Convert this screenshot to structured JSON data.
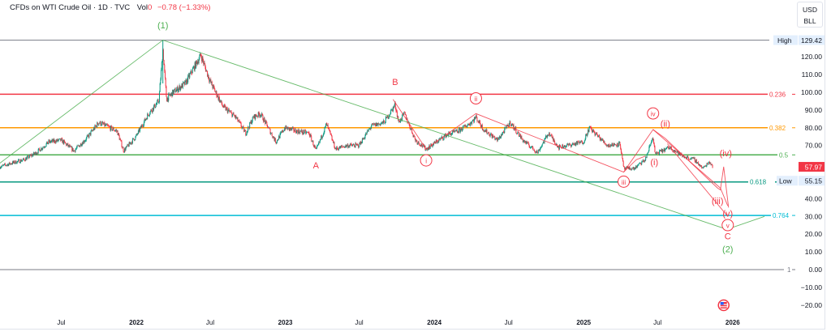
{
  "header": {
    "symbol_title": "CFDs on WTI Crude Oil · 1D · TVC",
    "volume_label": "Vol",
    "volume_value": "0",
    "change": "−0.78 (−1.33%)"
  },
  "currency": {
    "line1": "USD",
    "line2": "BLL"
  },
  "colors": {
    "up": "#089981",
    "down": "#f23645",
    "fib_high": "#787b86",
    "fib_0236": "#f23645",
    "fib_0382": "#ff9800",
    "fib_05": "#4caf50",
    "fib_0618": "#089981",
    "fib_0764": "#00bcd4",
    "fib_1": "#787b86",
    "wave_green": "#4caf50",
    "wave_red": "#f23645"
  },
  "chart_data": {
    "type": "candlestick",
    "title": "CFDs on WTI Crude Oil · 1D · TVC",
    "ylim": [
      -25,
      135
    ],
    "y_ticks": [
      "120.00",
      "110.00",
      "100.00",
      "90.00",
      "80.00",
      "70.00",
      "40.00",
      "30.00",
      "20.00",
      "10.00",
      "0.00",
      "−10.00",
      "−20.00"
    ],
    "y_tick_values": [
      120,
      110,
      100,
      90,
      80,
      70,
      40,
      30,
      20,
      10,
      0,
      -10,
      -20
    ],
    "x_ticks": [
      {
        "label": "Jul",
        "date": "2021-07-01",
        "bold": false
      },
      {
        "label": "2022",
        "date": "2022-01-01",
        "bold": true
      },
      {
        "label": "Jul",
        "date": "2022-07-01",
        "bold": false
      },
      {
        "label": "2023",
        "date": "2023-01-01",
        "bold": true
      },
      {
        "label": "Jul",
        "date": "2023-07-01",
        "bold": false
      },
      {
        "label": "2024",
        "date": "2024-01-01",
        "bold": true
      },
      {
        "label": "Jul",
        "date": "2024-07-01",
        "bold": false
      },
      {
        "label": "2025",
        "date": "2025-01-01",
        "bold": true
      },
      {
        "label": "Jul",
        "date": "2025-07-01",
        "bold": false
      },
      {
        "label": "2026",
        "date": "2026-01-01",
        "bold": true
      }
    ],
    "price_path": [
      [
        "2021-02-01",
        58
      ],
      [
        "2021-03-01",
        60
      ],
      [
        "2021-04-01",
        62
      ],
      [
        "2021-05-01",
        66
      ],
      [
        "2021-06-01",
        72
      ],
      [
        "2021-07-01",
        73
      ],
      [
        "2021-08-01",
        67
      ],
      [
        "2021-09-01",
        74
      ],
      [
        "2021-10-01",
        83
      ],
      [
        "2021-11-15",
        78
      ],
      [
        "2021-12-01",
        67
      ],
      [
        "2021-12-31",
        75
      ],
      [
        "2022-01-31",
        88
      ],
      [
        "2022-02-25",
        95
      ],
      [
        "2022-03-07",
        124
      ],
      [
        "2022-03-16",
        96
      ],
      [
        "2022-04-01",
        100
      ],
      [
        "2022-05-01",
        105
      ],
      [
        "2022-06-08",
        121
      ],
      [
        "2022-07-01",
        106
      ],
      [
        "2022-08-01",
        92
      ],
      [
        "2022-09-01",
        86
      ],
      [
        "2022-09-26",
        77
      ],
      [
        "2022-10-15",
        86
      ],
      [
        "2022-11-01",
        88
      ],
      [
        "2022-12-09",
        72
      ],
      [
        "2022-12-31",
        80
      ],
      [
        "2023-01-31",
        78
      ],
      [
        "2023-02-28",
        77
      ],
      [
        "2023-03-17",
        67
      ],
      [
        "2023-04-12",
        82
      ],
      [
        "2023-05-04",
        68
      ],
      [
        "2023-06-01",
        70
      ],
      [
        "2023-06-30",
        70
      ],
      [
        "2023-07-31",
        81
      ],
      [
        "2023-08-31",
        83
      ],
      [
        "2023-09-27",
        93
      ],
      [
        "2023-10-06",
        83
      ],
      [
        "2023-10-20",
        88
      ],
      [
        "2023-11-16",
        73
      ],
      [
        "2023-12-12",
        68
      ],
      [
        "2024-01-31",
        76
      ],
      [
        "2024-02-28",
        78
      ],
      [
        "2024-03-31",
        83
      ],
      [
        "2024-04-12",
        86
      ],
      [
        "2024-05-01",
        79
      ],
      [
        "2024-06-04",
        73
      ],
      [
        "2024-07-05",
        83
      ],
      [
        "2024-08-05",
        73
      ],
      [
        "2024-09-10",
        66
      ],
      [
        "2024-10-07",
        77
      ],
      [
        "2024-11-01",
        69
      ],
      [
        "2024-12-31",
        72
      ],
      [
        "2025-01-15",
        80
      ],
      [
        "2025-02-28",
        70
      ],
      [
        "2025-03-31",
        71
      ],
      [
        "2025-04-09",
        57
      ],
      [
        "2025-05-05",
        57
      ],
      [
        "2025-06-01",
        62
      ],
      [
        "2025-06-20",
        75
      ],
      [
        "2025-06-25",
        65
      ],
      [
        "2025-07-31",
        69
      ],
      [
        "2025-08-31",
        64
      ],
      [
        "2025-09-30",
        62
      ],
      [
        "2025-10-20",
        57
      ],
      [
        "2025-11-05",
        61
      ],
      [
        "2025-11-14",
        57.97
      ]
    ],
    "fib_levels": [
      {
        "ratio": "High",
        "price": 129.42,
        "label": "High",
        "value_label": "129.42",
        "color_key": "fib_high"
      },
      {
        "ratio": "0.236",
        "price": 98.9,
        "label": "0.236",
        "color_key": "fib_0236"
      },
      {
        "ratio": "0.382",
        "price": 80.0,
        "label": "0.382",
        "color_key": "fib_0382"
      },
      {
        "ratio": "0.5",
        "price": 64.71,
        "label": "0.5",
        "color_key": "fib_05"
      },
      {
        "ratio": "0.618",
        "price": 49.44,
        "label": "0.618",
        "color_key": "fib_0618"
      },
      {
        "ratio": "0.764",
        "price": 30.55,
        "label": "0.764",
        "color_key": "fib_0764"
      },
      {
        "ratio": "1",
        "price": 0,
        "label": "1",
        "color_key": "fib_1"
      }
    ],
    "last_price": {
      "value": 57.97,
      "label": "57.97"
    },
    "low_marker": {
      "label": "Low",
      "value": 55.15,
      "value_label": "55.15"
    },
    "wave_labels": [
      {
        "text": "(1)",
        "date": "2022-03-07",
        "price": 136,
        "color_key": "wave_green",
        "circle": false
      },
      {
        "text": "(2)",
        "date": "2025-12-20",
        "price": 14,
        "color_key": "wave_green",
        "circle": false
      },
      {
        "text": "A",
        "date": "2023-03-17",
        "price": 57,
        "color_key": "wave_red",
        "circle": false
      },
      {
        "text": "B",
        "date": "2023-09-27",
        "price": 104,
        "color_key": "wave_red",
        "circle": false
      },
      {
        "text": "C",
        "date": "2025-12-20",
        "price": 19.5,
        "color_key": "wave_red",
        "circle": false
      },
      {
        "text": "i",
        "date": "2023-12-12",
        "price": 60,
        "color_key": "wave_red",
        "circle": true
      },
      {
        "text": "ii",
        "date": "2024-04-12",
        "price": 95,
        "color_key": "wave_red",
        "circle": true
      },
      {
        "text": "iii",
        "date": "2025-04-09",
        "price": 48,
        "color_key": "wave_red",
        "circle": true
      },
      {
        "text": "iv",
        "date": "2025-06-20",
        "price": 86.5,
        "color_key": "wave_red",
        "circle": true
      },
      {
        "text": "v",
        "date": "2025-12-20",
        "price": 23.5,
        "color_key": "wave_red",
        "circle": true
      },
      {
        "text": "(i)",
        "date": "2025-06-23",
        "price": 59,
        "color_key": "wave_red",
        "circle": false
      },
      {
        "text": "(ii)",
        "date": "2025-07-20",
        "price": 80.5,
        "color_key": "wave_red",
        "circle": false
      },
      {
        "text": "(iii)",
        "date": "2025-11-25",
        "price": 37,
        "color_key": "wave_red",
        "circle": false
      },
      {
        "text": "(iv)",
        "date": "2025-12-15",
        "price": 64,
        "color_key": "wave_red",
        "circle": false
      },
      {
        "text": "(v)",
        "date": "2025-12-20",
        "price": 29,
        "color_key": "wave_red",
        "circle": false
      }
    ],
    "wave_lines": [
      {
        "color_key": "wave_green",
        "points": [
          [
            "2021-01-20",
            58
          ],
          [
            "2022-03-07",
            129.42
          ],
          [
            "2025-12-18",
            22.7
          ],
          [
            "2026-03-20",
            30
          ]
        ]
      },
      {
        "color_key": "wave_red",
        "points": [
          [
            "2023-09-22",
            96
          ],
          [
            "2023-12-12",
            68
          ],
          [
            "2024-04-12",
            88
          ],
          [
            "2025-04-09",
            55
          ],
          [
            "2025-06-20",
            79
          ],
          [
            "2025-12-02",
            46
          ],
          [
            "2025-12-20",
            36
          ]
        ]
      },
      {
        "color_key": "wave_red",
        "points": [
          [
            "2025-06-20",
            79
          ],
          [
            "2025-07-20",
            74
          ],
          [
            "2025-11-25",
            46
          ],
          [
            "2025-12-02",
            45
          ],
          [
            "2025-12-10",
            58
          ],
          [
            "2025-12-22",
            35
          ]
        ]
      },
      {
        "color_key": "wave_red",
        "points": [
          [
            "2025-07-25",
            71
          ],
          [
            "2025-12-20",
            30
          ]
        ]
      },
      {
        "color_key": "wave_red",
        "points": [
          [
            "2025-04-09",
            55
          ],
          [
            "2025-05-10",
            62
          ],
          [
            "2025-06-01",
            64
          ]
        ]
      }
    ],
    "grid": false,
    "legend": "none"
  }
}
